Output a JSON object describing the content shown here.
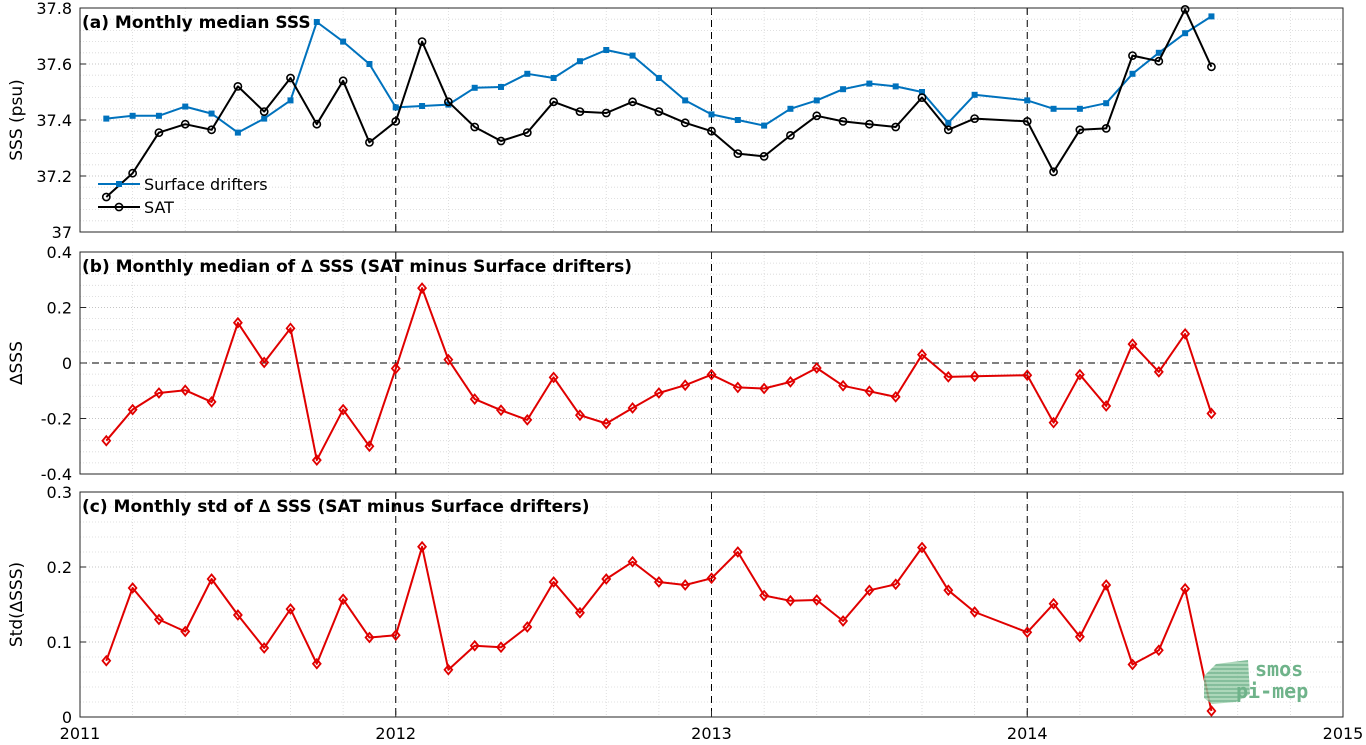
{
  "colors": {
    "drifters": "#0072BD",
    "sat": "#000000",
    "delta": "#E00000",
    "logo": "#6fb38a"
  },
  "logo": {
    "line1": "smos",
    "line2": "pi-mep"
  },
  "x_axis": {
    "range": [
      2011,
      2015
    ],
    "tick_labels": [
      "2011",
      "2012",
      "2013",
      "2014",
      "2015"
    ],
    "year_separators": [
      2012,
      2013,
      2014
    ]
  },
  "chart_data": [
    {
      "type": "line",
      "title": "(a) Monthly median SSS",
      "ylabel": "SSS (psu)",
      "ylim": [
        37,
        37.8
      ],
      "yticks": [
        37,
        37.2,
        37.4,
        37.6,
        37.8
      ],
      "ytick_labels": [
        "37",
        "37.2",
        "37.4",
        "37.6",
        "37.8"
      ],
      "grid": true,
      "legend": "left, lower",
      "x": [
        "2011-02",
        "2011-03",
        "2011-04",
        "2011-05",
        "2011-06",
        "2011-07",
        "2011-08",
        "2011-09",
        "2011-10",
        "2011-11",
        "2011-12",
        "2012-01",
        "2012-02",
        "2012-03",
        "2012-04",
        "2012-05",
        "2012-06",
        "2012-07",
        "2012-08",
        "2012-09",
        "2012-10",
        "2012-11",
        "2012-12",
        "2013-01",
        "2013-02",
        "2013-03",
        "2013-04",
        "2013-05",
        "2013-06",
        "2013-07",
        "2013-08",
        "2013-09",
        "2013-10",
        "2013-11",
        "2014-01",
        "2014-02",
        "2014-03",
        "2014-04",
        "2014-05",
        "2014-06",
        "2014-07",
        "2014-08"
      ],
      "series": [
        {
          "name": "Surface drifters",
          "color": "#0072BD",
          "marker": "square",
          "values": [
            37.405,
            37.415,
            37.415,
            37.448,
            37.423,
            37.355,
            37.405,
            37.47,
            37.75,
            37.68,
            37.6,
            37.445,
            37.45,
            37.455,
            37.515,
            37.518,
            37.565,
            37.55,
            37.61,
            37.65,
            37.63,
            37.55,
            37.47,
            37.42,
            37.4,
            37.38,
            37.44,
            37.47,
            37.51,
            37.53,
            37.52,
            37.5,
            37.39,
            37.49,
            37.47,
            37.44,
            37.44,
            37.46,
            37.565,
            37.64,
            37.71,
            37.77
          ]
        },
        {
          "name": "SAT",
          "color": "#000000",
          "marker": "circle",
          "values": [
            37.125,
            37.21,
            37.355,
            37.385,
            37.365,
            37.52,
            37.43,
            37.55,
            37.385,
            37.54,
            37.32,
            37.395,
            37.68,
            37.465,
            37.375,
            37.325,
            37.355,
            37.465,
            37.43,
            37.425,
            37.465,
            37.43,
            37.39,
            37.36,
            37.28,
            37.27,
            37.345,
            37.415,
            37.395,
            37.385,
            37.375,
            37.48,
            37.365,
            37.405,
            37.395,
            37.215,
            37.365,
            37.37,
            37.63,
            37.61,
            37.795,
            37.59
          ]
        }
      ]
    },
    {
      "type": "line",
      "title": "(b) Monthly median of ∆ SSS (SAT minus Surface drifters)",
      "ylabel": "∆SSS",
      "ylim": [
        -0.4,
        0.4
      ],
      "yticks": [
        -0.4,
        -0.2,
        0,
        0.2,
        0.4
      ],
      "ytick_labels": [
        "-0.4",
        "-0.2",
        "0",
        "0.2",
        "0.4"
      ],
      "grid": true,
      "zero_line": true,
      "x": [
        "2011-02",
        "2011-03",
        "2011-04",
        "2011-05",
        "2011-06",
        "2011-07",
        "2011-08",
        "2011-09",
        "2011-10",
        "2011-11",
        "2011-12",
        "2012-01",
        "2012-02",
        "2012-03",
        "2012-04",
        "2012-05",
        "2012-06",
        "2012-07",
        "2012-08",
        "2012-09",
        "2012-10",
        "2012-11",
        "2012-12",
        "2013-01",
        "2013-02",
        "2013-03",
        "2013-04",
        "2013-05",
        "2013-06",
        "2013-07",
        "2013-08",
        "2013-09",
        "2013-10",
        "2013-11",
        "2014-01",
        "2014-02",
        "2014-03",
        "2014-04",
        "2014-05",
        "2014-06",
        "2014-07",
        "2014-08"
      ],
      "series": [
        {
          "name": "",
          "color": "#E00000",
          "marker": "diamond",
          "values": [
            -0.28,
            -0.168,
            -0.108,
            -0.098,
            -0.14,
            0.145,
            0.002,
            0.125,
            -0.35,
            -0.168,
            -0.3,
            -0.02,
            0.27,
            0.012,
            -0.13,
            -0.17,
            -0.205,
            -0.052,
            -0.188,
            -0.218,
            -0.162,
            -0.108,
            -0.08,
            -0.042,
            -0.088,
            -0.092,
            -0.068,
            -0.018,
            -0.082,
            -0.102,
            -0.122,
            0.03,
            -0.05,
            -0.048,
            -0.044,
            -0.215,
            -0.042,
            -0.155,
            0.068,
            -0.032,
            0.105,
            -0.182
          ]
        }
      ]
    },
    {
      "type": "line",
      "title": "(c) Monthly std of ∆ SSS (SAT minus Surface drifters)",
      "ylabel": "Std(∆SSS)",
      "ylim": [
        0,
        0.3
      ],
      "yticks": [
        0,
        0.1,
        0.2,
        0.3
      ],
      "ytick_labels": [
        "0",
        "0.1",
        "0.2",
        "0.3"
      ],
      "grid": true,
      "x": [
        "2011-02",
        "2011-03",
        "2011-04",
        "2011-05",
        "2011-06",
        "2011-07",
        "2011-08",
        "2011-09",
        "2011-10",
        "2011-11",
        "2011-12",
        "2012-01",
        "2012-02",
        "2012-03",
        "2012-04",
        "2012-05",
        "2012-06",
        "2012-07",
        "2012-08",
        "2012-09",
        "2012-10",
        "2012-11",
        "2012-12",
        "2013-01",
        "2013-02",
        "2013-03",
        "2013-04",
        "2013-05",
        "2013-06",
        "2013-07",
        "2013-08",
        "2013-09",
        "2013-10",
        "2013-11",
        "2014-01",
        "2014-02",
        "2014-03",
        "2014-04",
        "2014-05",
        "2014-06",
        "2014-07",
        "2014-08"
      ],
      "series": [
        {
          "name": "",
          "color": "#E00000",
          "marker": "diamond",
          "values": [
            0.075,
            0.172,
            0.13,
            0.114,
            0.184,
            0.136,
            0.092,
            0.144,
            0.071,
            0.157,
            0.106,
            0.109,
            0.227,
            0.063,
            0.095,
            0.093,
            0.12,
            0.18,
            0.139,
            0.184,
            0.207,
            0.18,
            0.176,
            0.185,
            0.22,
            0.162,
            0.155,
            0.156,
            0.128,
            0.169,
            0.177,
            0.226,
            0.169,
            0.14,
            0.113,
            0.151,
            0.107,
            0.176,
            0.07,
            0.089,
            0.171,
            0.008
          ]
        }
      ]
    }
  ]
}
